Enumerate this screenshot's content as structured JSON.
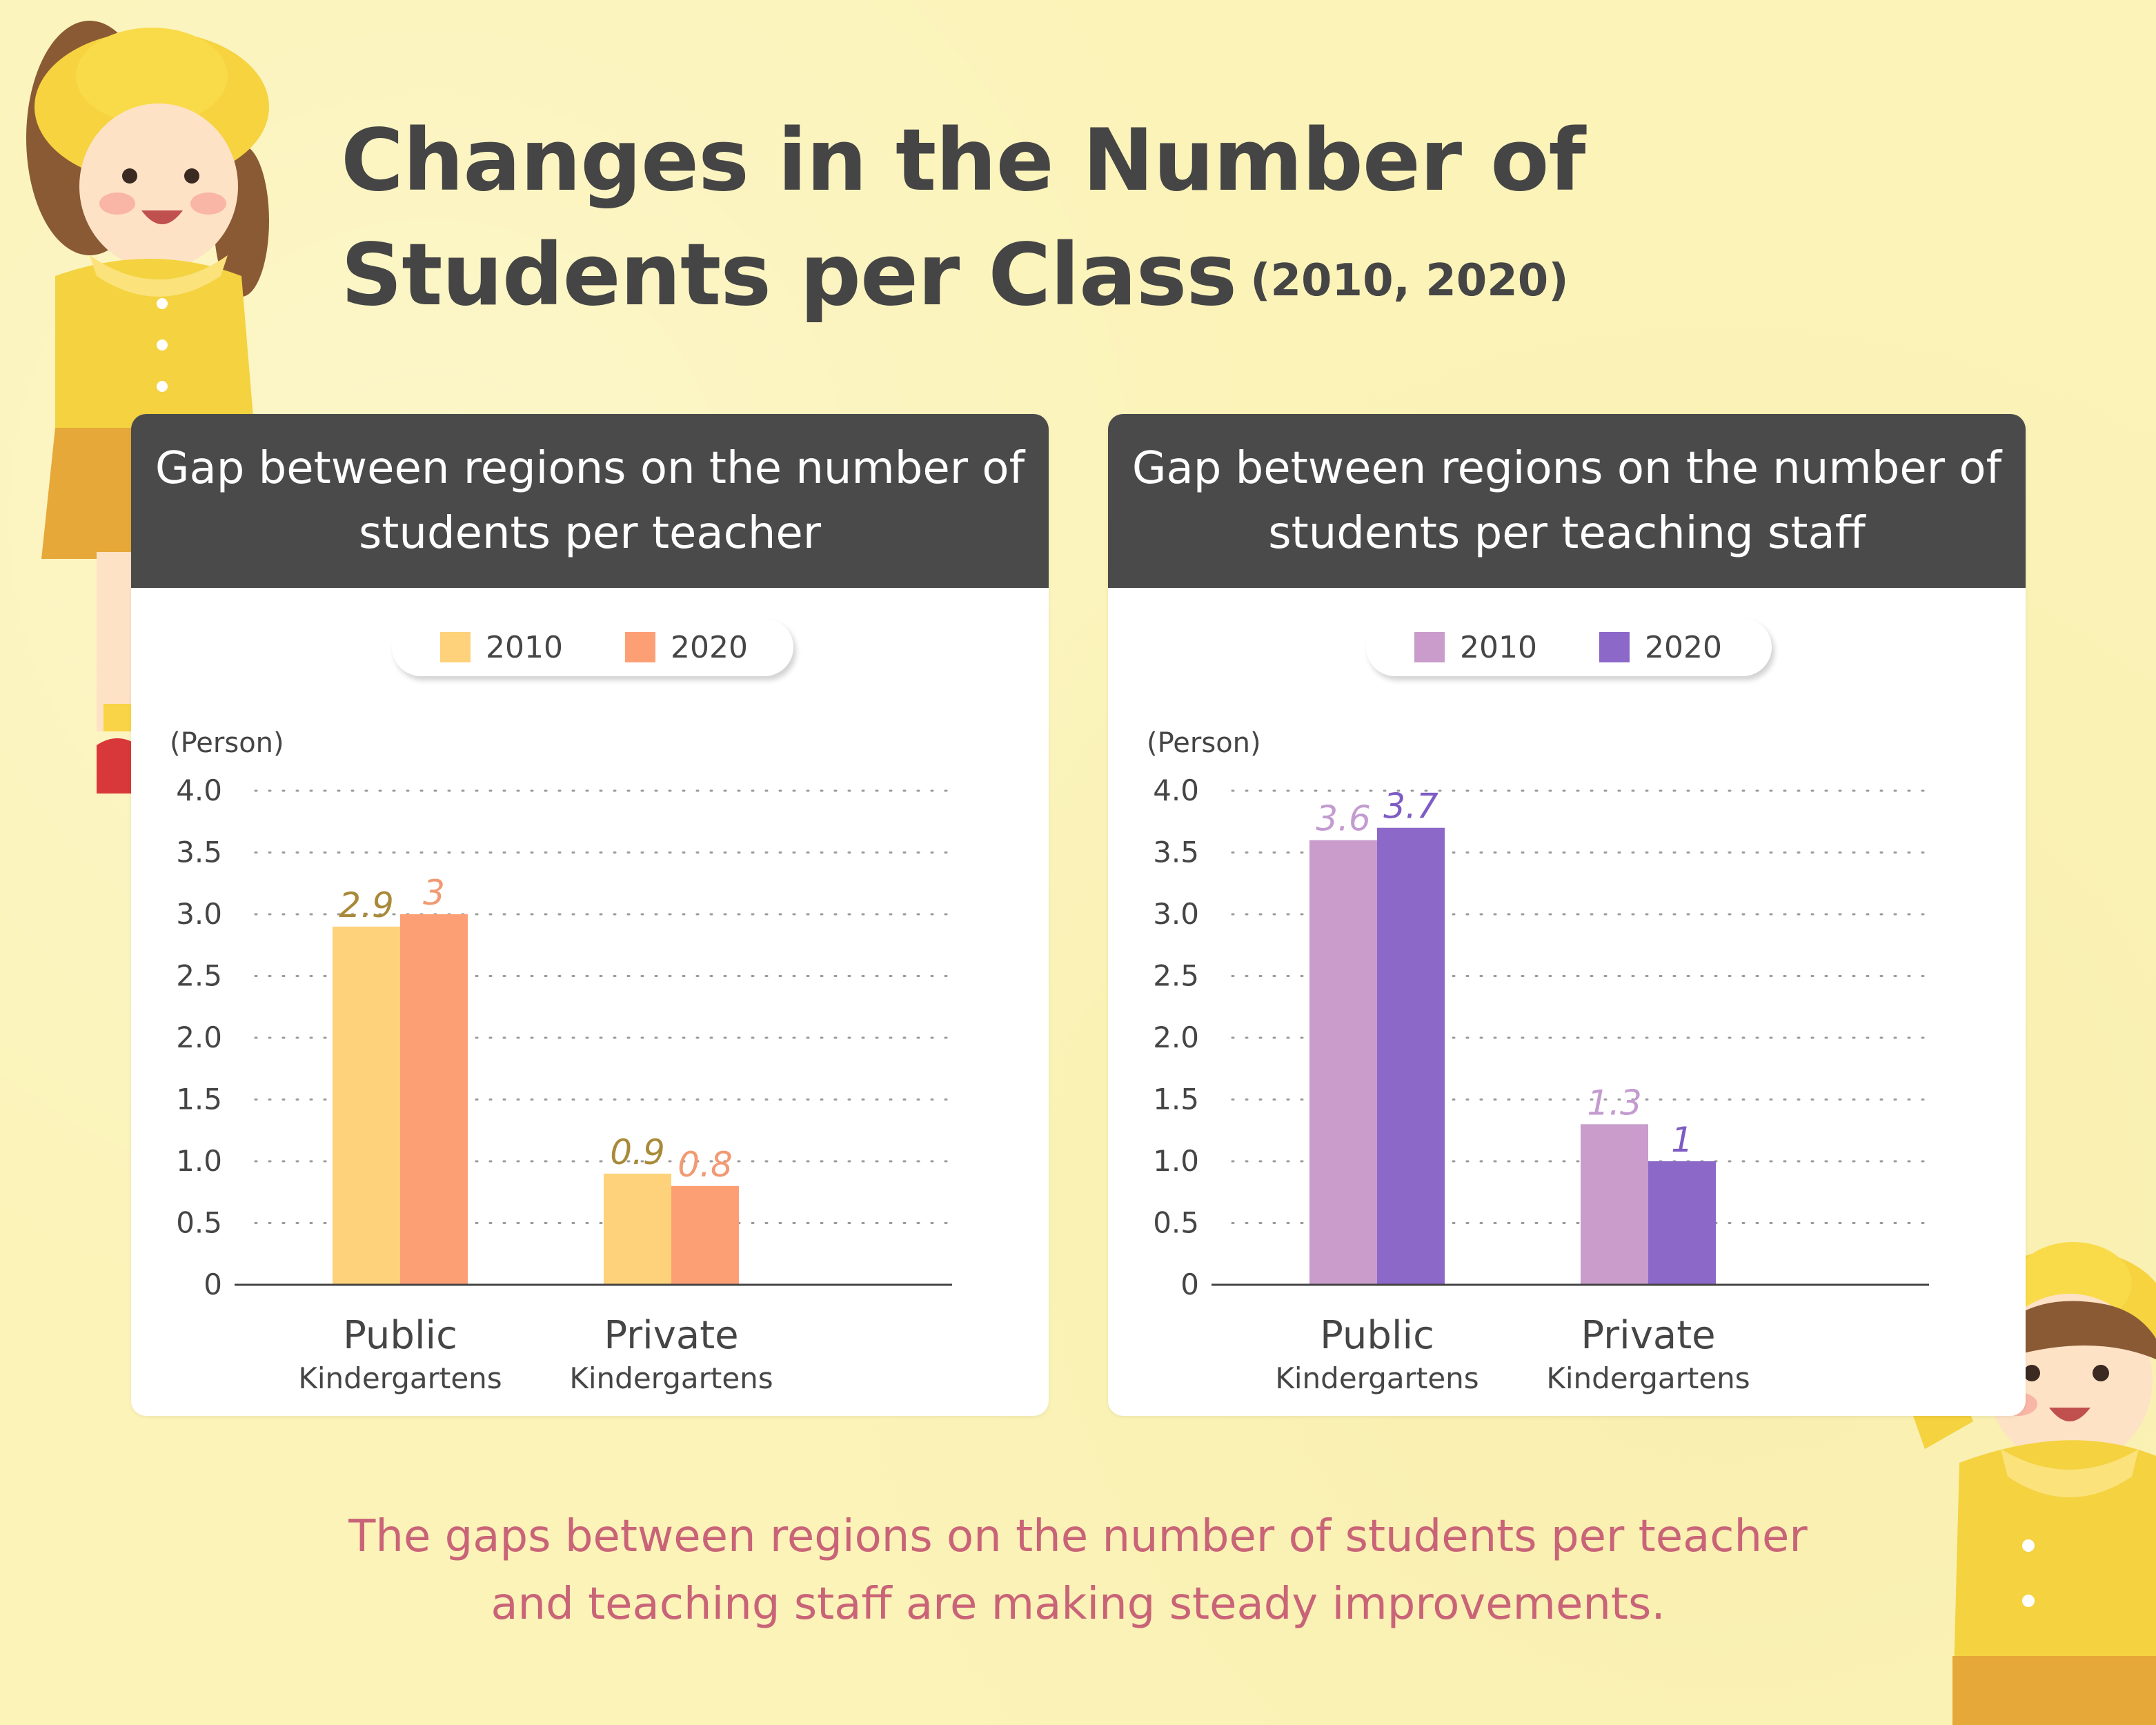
{
  "title": {
    "line1": "Changes in the Number of",
    "line2": "Students per Class",
    "years": "(2010, 2020)"
  },
  "caption": {
    "line1": "The gaps between regions on the number of students per teacher",
    "line2": "and teaching staff are making steady improvements."
  },
  "chart_data": [
    {
      "type": "bar",
      "title": "Gap between regions on the number of students per teacher",
      "title_lines": [
        "Gap between regions on the number of",
        "students per teacher"
      ],
      "ylabel": "(Person)",
      "ylim": [
        0,
        4
      ],
      "yticks": [
        "0",
        "0.5",
        "1.0",
        "1.5",
        "2.0",
        "2.5",
        "3.0",
        "3.5",
        "4.0"
      ],
      "grid": true,
      "legend": "top",
      "categories": [
        {
          "main": "Public",
          "sub": "Kindergartens"
        },
        {
          "main": "Private",
          "sub": "Kindergartens"
        }
      ],
      "series": [
        {
          "name": "2010",
          "color": "#fdd27a",
          "label_color": "#a88a3a",
          "values": [
            2.9,
            0.9
          ],
          "labels": [
            "2.9",
            "0.9"
          ]
        },
        {
          "name": "2020",
          "color": "#fd9f75",
          "label_color": "#f19a73",
          "values": [
            3.0,
            0.8
          ],
          "labels": [
            "3",
            "0.8"
          ]
        }
      ]
    },
    {
      "type": "bar",
      "title": "Gap between regions on the number of students per teaching staff",
      "title_lines": [
        "Gap between regions on the number of",
        "students per teaching staff"
      ],
      "ylabel": "(Person)",
      "ylim": [
        0,
        4
      ],
      "yticks": [
        "0",
        "0.5",
        "1.0",
        "1.5",
        "2.0",
        "2.5",
        "3.0",
        "3.5",
        "4.0"
      ],
      "grid": true,
      "legend": "top",
      "categories": [
        {
          "main": "Public",
          "sub": "Kindergartens"
        },
        {
          "main": "Private",
          "sub": "Kindergartens"
        }
      ],
      "series": [
        {
          "name": "2010",
          "color": "#c99ccb",
          "label_color": "#c39bd0",
          "values": [
            3.6,
            1.3
          ],
          "labels": [
            "3.6",
            "1.3"
          ]
        },
        {
          "name": "2020",
          "color": "#8c68c9",
          "label_color": "#7e5cc4",
          "values": [
            3.7,
            1.0
          ],
          "labels": [
            "3.7",
            "1"
          ]
        }
      ]
    }
  ]
}
